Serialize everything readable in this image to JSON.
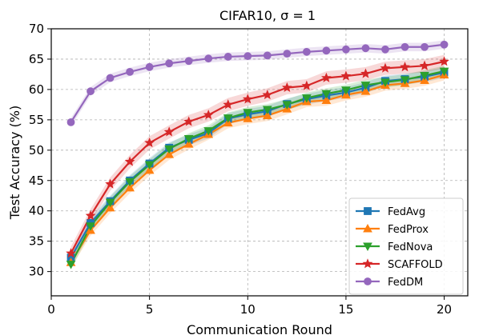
{
  "chart_data": {
    "type": "line",
    "title": "CIFAR10, σ = 1",
    "xlabel": "Communication Round",
    "ylabel": "Test Accuracy (%)",
    "xlim": [
      0,
      21.2
    ],
    "ylim": [
      26,
      70
    ],
    "xticks": [
      0,
      5,
      10,
      15,
      20
    ],
    "yticks": [
      30,
      35,
      40,
      45,
      50,
      55,
      60,
      65,
      70
    ],
    "grid": true,
    "legend_position": "lower-right",
    "x": [
      1,
      2,
      3,
      4,
      5,
      6,
      7,
      8,
      9,
      10,
      11,
      12,
      13,
      14,
      15,
      16,
      17,
      18,
      19,
      20
    ],
    "series": [
      {
        "name": "FedAvg",
        "color": "#1f77b4",
        "marker": "square",
        "values": [
          32.3,
          38.0,
          41.6,
          45.0,
          47.8,
          50.4,
          51.7,
          52.8,
          55.2,
          55.9,
          56.4,
          57.6,
          58.4,
          59.0,
          59.5,
          60.3,
          61.4,
          61.7,
          62.1,
          62.8
        ],
        "band": 0.9
      },
      {
        "name": "FedProx",
        "color": "#ff7f0e",
        "marker": "triangle-up",
        "values": [
          31.5,
          36.8,
          40.5,
          43.8,
          46.7,
          49.3,
          51.0,
          52.6,
          54.5,
          55.2,
          55.7,
          56.8,
          58.0,
          58.2,
          59.1,
          59.7,
          60.7,
          61.0,
          61.5,
          62.4
        ],
        "band": 0.9
      },
      {
        "name": "FedNova",
        "color": "#2ca02c",
        "marker": "triangle-down",
        "values": [
          31.2,
          37.5,
          41.4,
          44.8,
          47.6,
          50.2,
          51.9,
          53.2,
          55.3,
          56.2,
          56.7,
          57.5,
          58.6,
          59.3,
          59.9,
          60.7,
          61.2,
          61.6,
          62.3,
          63.0
        ],
        "band": 0.9
      },
      {
        "name": "SCAFFOLD",
        "color": "#d62728",
        "marker": "star",
        "values": [
          33.0,
          39.2,
          44.4,
          48.1,
          51.2,
          53.0,
          54.7,
          55.8,
          57.5,
          58.4,
          59.1,
          60.3,
          60.6,
          61.9,
          62.2,
          62.6,
          63.5,
          63.7,
          63.9,
          64.6
        ],
        "band": 1.1
      },
      {
        "name": "FedDM",
        "color": "#9467bd",
        "marker": "circle",
        "values": [
          54.6,
          59.7,
          61.9,
          62.9,
          63.7,
          64.3,
          64.7,
          65.1,
          65.4,
          65.5,
          65.6,
          65.9,
          66.2,
          66.4,
          66.6,
          66.8,
          66.6,
          67.0,
          67.0,
          67.4
        ],
        "band": 0.7
      }
    ]
  }
}
